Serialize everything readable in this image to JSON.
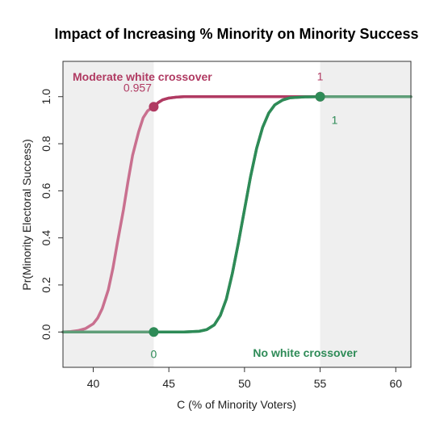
{
  "chart_data": {
    "type": "line",
    "title": "Impact of Increasing % Minority on Minority Success",
    "xlabel": "C (% of Minority Voters)",
    "ylabel": "Pr(Minority Electoral Success)",
    "xlim": [
      38,
      61
    ],
    "ylim": [
      -0.15,
      1.15
    ],
    "x_ticks": [
      40,
      45,
      50,
      55,
      60
    ],
    "y_ticks": [
      0.0,
      0.2,
      0.4,
      0.6,
      0.8,
      1.0
    ],
    "y_tick_labels": [
      "0.0",
      "0.2",
      "0.4",
      "0.6",
      "0.8",
      "1.0"
    ],
    "grid": false,
    "shaded_regions": [
      {
        "x": [
          38,
          44
        ],
        "color": "#efefef"
      },
      {
        "x": [
          55,
          61
        ],
        "color": "#efefef"
      }
    ],
    "series": [
      {
        "name": "Moderate white crossover",
        "color": "#b03a62",
        "x": [
          38.0,
          38.5,
          39.0,
          39.5,
          40.0,
          40.3,
          40.6,
          41.0,
          41.3,
          41.6,
          42.0,
          42.3,
          42.6,
          43.0,
          43.3,
          43.6,
          44.0,
          44.3,
          44.6,
          45.0,
          45.5,
          46.0,
          47.0,
          48.0,
          50.0,
          55.0,
          61.0
        ],
        "y": [
          0.0,
          0.002,
          0.006,
          0.015,
          0.035,
          0.06,
          0.1,
          0.18,
          0.27,
          0.38,
          0.52,
          0.64,
          0.75,
          0.85,
          0.91,
          0.94,
          0.957,
          0.975,
          0.987,
          0.994,
          0.998,
          1.0,
          1.0,
          1.0,
          1.0,
          1.0,
          1.0
        ]
      },
      {
        "name": "No white crossover",
        "color": "#2e8b57",
        "x": [
          38.0,
          44.0,
          46.0,
          47.0,
          47.5,
          48.0,
          48.4,
          48.8,
          49.2,
          49.6,
          50.0,
          50.4,
          50.8,
          51.2,
          51.6,
          52.0,
          52.5,
          53.0,
          54.0,
          55.0,
          61.0
        ],
        "y": [
          0.0,
          0.0,
          0.0,
          0.003,
          0.01,
          0.03,
          0.07,
          0.14,
          0.25,
          0.38,
          0.52,
          0.66,
          0.78,
          0.87,
          0.93,
          0.965,
          0.985,
          0.995,
          0.999,
          1.0,
          1.0
        ]
      }
    ],
    "points": [
      {
        "x": 44,
        "y": 0.957,
        "label": "0.957",
        "color": "#b03a62"
      },
      {
        "x": 55,
        "y": 1.0,
        "label": "1",
        "color": "#b03a62"
      },
      {
        "x": 44,
        "y": 0.0,
        "label": "0",
        "color": "#2e8b57"
      },
      {
        "x": 55,
        "y": 1.0,
        "label": "1",
        "color": "#2e8b57"
      }
    ],
    "annotations": [
      {
        "text": "Moderate white crossover",
        "color": "#b03a62",
        "bold": true
      },
      {
        "text": "No white crossover",
        "color": "#2e8b57",
        "bold": true
      }
    ]
  }
}
